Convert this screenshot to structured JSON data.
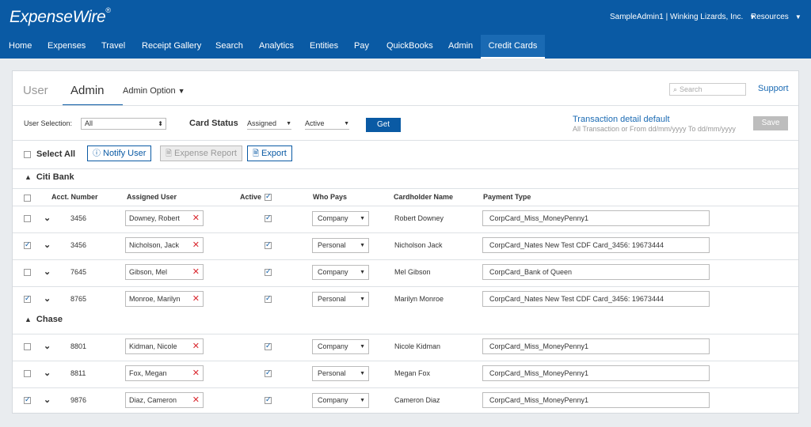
{
  "header": {
    "logo": "ExpenseWire",
    "logo_mark": "®",
    "account": "SampleAdmin1 | Winking Lizards, Inc.",
    "resources": "Resources"
  },
  "nav": [
    "Home",
    "Expenses",
    "Travel",
    "Receipt Gallery",
    "Search",
    "Analytics",
    "Entities",
    "Pay",
    "QuickBooks",
    "Admin",
    "Credit Cards"
  ],
  "nav_active": "Credit Cards",
  "tabs": {
    "user": "User",
    "admin": "Admin",
    "admin_option": "Admin Option"
  },
  "search": {
    "placeholder": "Search"
  },
  "support": "Support",
  "filters": {
    "user_selection_label": "User Selection:",
    "user_selection_value": "All",
    "card_status_label": "Card Status",
    "status_assigned": "Assigned",
    "status_active": "Active",
    "get_label": "Get",
    "txn_title": "Transaction detail default",
    "txn_sub": "All Transaction or From dd/mm/yyyy To dd/mm/yyyy",
    "save_label": "Save"
  },
  "toolbar": {
    "select_all": "Select All",
    "notify_user": "Notify User",
    "expense_report": "Expense Report",
    "export": "Export"
  },
  "columns": {
    "acct": "Acct. Number",
    "user": "Assigned User",
    "active": "Active",
    "who_pays": "Who Pays",
    "cardholder": "Cardholder Name",
    "payment_type": "Payment Type"
  },
  "groups": [
    {
      "name": "Citi Bank",
      "rows": [
        {
          "checked": false,
          "acct": "3456",
          "user": "Downey, Robert",
          "active": true,
          "who_pays": "Company",
          "cardholder": "Robert Downey",
          "payment_type": "CorpCard_Miss_MoneyPenny1"
        },
        {
          "checked": true,
          "acct": "3456",
          "user": "Nicholson, Jack",
          "active": true,
          "who_pays": "Personal",
          "cardholder": "Nicholson Jack",
          "payment_type": "CorpCard_Nates New Test CDF Card_3456: 19673444"
        },
        {
          "checked": false,
          "acct": "7645",
          "user": "Gibson, Mel",
          "active": true,
          "who_pays": "Company",
          "cardholder": "Mel Gibson",
          "payment_type": "CorpCard_Bank of Queen"
        },
        {
          "checked": true,
          "acct": "8765",
          "user": "Monroe, Marilyn",
          "active": true,
          "who_pays": "Personal",
          "cardholder": "Marilyn Monroe",
          "payment_type": "CorpCard_Nates New Test CDF Card_3456: 19673444"
        }
      ]
    },
    {
      "name": "Chase",
      "rows": [
        {
          "checked": false,
          "acct": "8801",
          "user": "Kidman, Nicole",
          "active": true,
          "who_pays": "Company",
          "cardholder": "Nicole Kidman",
          "payment_type": "CorpCard_Miss_MoneyPenny1"
        },
        {
          "checked": false,
          "acct": "8811",
          "user": "Fox, Megan",
          "active": true,
          "who_pays": "Personal",
          "cardholder": "Megan Fox",
          "payment_type": "CorpCard_Miss_MoneyPenny1"
        },
        {
          "checked": true,
          "acct": "9876",
          "user": "Diaz, Cameron",
          "active": true,
          "who_pays": "Company",
          "cardholder": "Cameron Diaz",
          "payment_type": "CorpCard_Miss_MoneyPenny1"
        }
      ]
    }
  ]
}
